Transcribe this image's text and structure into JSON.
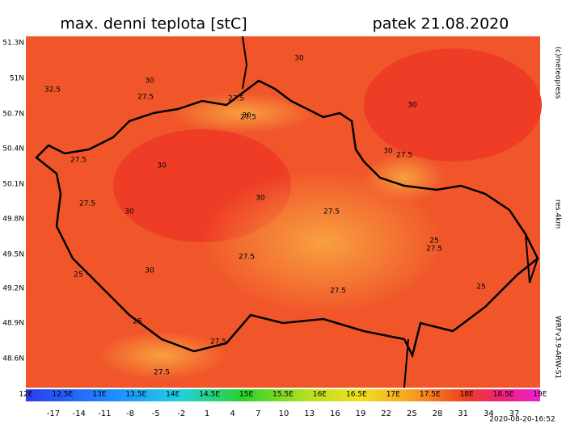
{
  "header": {
    "title": "max. denni teplota [stC]",
    "date": "patek 21.08.2020"
  },
  "lat_labels": [
    "51.3N",
    "51N",
    "50.7N",
    "50.4N",
    "50.1N",
    "49.8N",
    "49.5N",
    "49.2N",
    "48.9N",
    "48.6N"
  ],
  "lon_labels": [
    "12E",
    "12.5E",
    "13E",
    "13.5E",
    "14E",
    "14.5E",
    "15E",
    "15.5E",
    "16E",
    "16.5E",
    "17E",
    "17.5E",
    "18E",
    "18.5E",
    "19E"
  ],
  "colorbar_labels": [
    "-17",
    "-14",
    "-11",
    "-8",
    "-5",
    "-2",
    "1",
    "4",
    "7",
    "10",
    "13",
    "16",
    "19",
    "22",
    "25",
    "28",
    "31",
    "34",
    "37"
  ],
  "contour_labels": [
    "32.5",
    "30",
    "30",
    "27.5",
    "27.5",
    "30",
    "30",
    "27.5",
    "27.5",
    "30",
    "27.5",
    "30",
    "30",
    "27.5",
    "30",
    "27.5",
    "25",
    "27.5",
    "27.5",
    "25",
    "30",
    "27.5",
    "27.5",
    "25",
    "27.5",
    "25"
  ],
  "side": {
    "copyright": "(c)meteopress",
    "resolution": "res.4km",
    "model": "WRFv3.9-ARW-S1"
  },
  "footer": {
    "timestamp": "2020-08-20-16:52"
  }
}
